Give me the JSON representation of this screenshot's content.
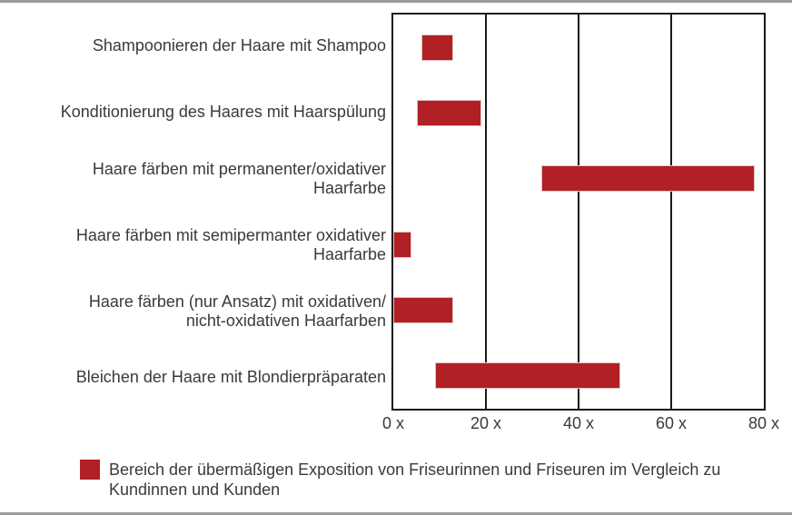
{
  "figure": {
    "background": "#ffffff",
    "rule_color": "#9b9b97",
    "text_color": "#3a3a39",
    "frame_color": "#1a1a1a"
  },
  "chart_data": {
    "type": "bar",
    "subtype": "horizontal-range-bars",
    "title": "",
    "xlabel": "",
    "ylabel": "",
    "xlim": [
      0,
      80
    ],
    "grid": "vertical-lines-at-ticks",
    "legend_position": "bottom-left",
    "bar_color": "#b02025",
    "x_ticks": [
      {
        "value": 0,
        "label": "0 x"
      },
      {
        "value": 20,
        "label": "20 x"
      },
      {
        "value": 40,
        "label": "40 x"
      },
      {
        "value": 60,
        "label": "60 x"
      },
      {
        "value": 80,
        "label": "80 x"
      }
    ],
    "categories": [
      [
        "Shampoonieren der Haare mit Shampoo"
      ],
      [
        "Konditionierung des Haares mit Haarspülung"
      ],
      [
        "Haare färben mit permanenter/oxidativer",
        "Haarfarbe"
      ],
      [
        "Haare färben mit semipermanter oxidativer",
        "Haarfarbe"
      ],
      [
        "Haare färben (nur Ansatz) mit oxidativen/",
        "nicht-oxidativen Haarfarben"
      ],
      [
        "Bleichen der Haare mit Blondierpräparaten"
      ]
    ],
    "series": [
      {
        "name": "Bereich der übermäßigen Exposition von Friseurinnen und Friseuren im Vergleich zu Kundinnen und Kunden",
        "ranges": [
          [
            6,
            13
          ],
          [
            5,
            19
          ],
          [
            32,
            78
          ],
          [
            0,
            4
          ],
          [
            0,
            13
          ],
          [
            9,
            49
          ]
        ]
      }
    ]
  },
  "legend": {
    "swatch_color": "#b02025",
    "lines": [
      "Bereich der übermäßigen Exposition von Friseurinnen und Friseuren im Vergleich zu",
      "Kundinnen und Kunden"
    ]
  }
}
